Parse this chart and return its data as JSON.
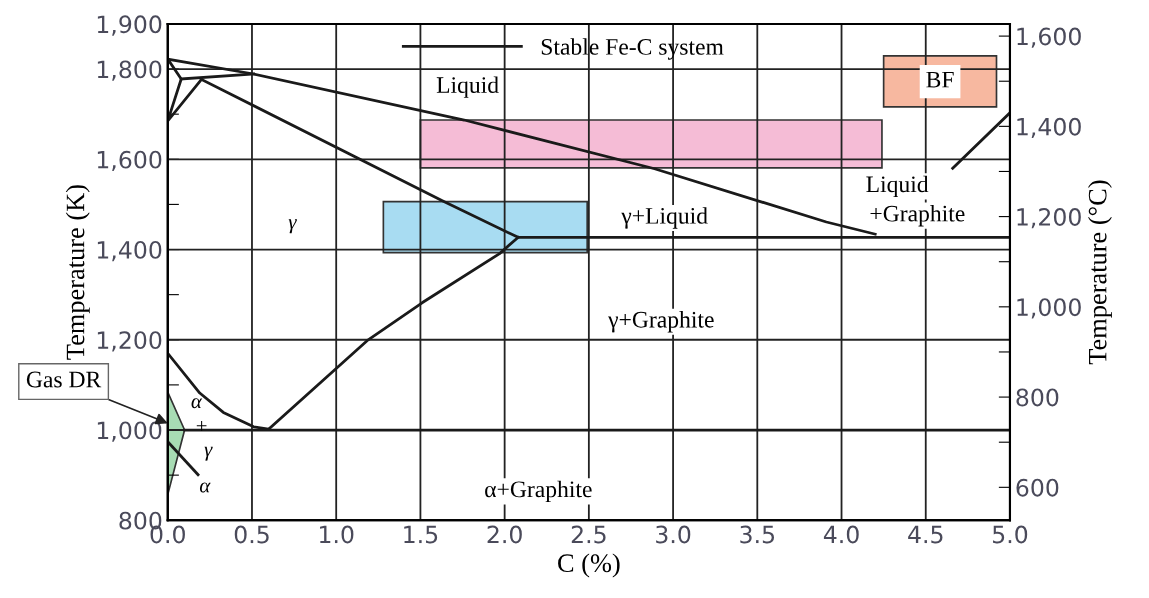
{
  "chart_data": {
    "type": "line",
    "xlabel": "C (%)",
    "ylabel": "Temperature (K)",
    "y2label": "Temperature (°C)",
    "xlim": [
      0,
      5
    ],
    "xticks": [
      {
        "value": 0,
        "label": "0.0"
      },
      {
        "value": 0.5,
        "label": "0.5"
      },
      {
        "value": 1,
        "label": "1.0"
      },
      {
        "value": 1.5,
        "label": "1.5"
      },
      {
        "value": 2,
        "label": "2.0"
      },
      {
        "value": 2.5,
        "label": "2.5"
      },
      {
        "value": 3,
        "label": "3.0"
      },
      {
        "value": 3.5,
        "label": "3.5"
      },
      {
        "value": 4,
        "label": "4.0"
      },
      {
        "value": 4.5,
        "label": "4.5"
      },
      {
        "value": 5,
        "label": "5.0"
      }
    ],
    "ylim": [
      800,
      1900
    ],
    "yticks": [
      800,
      {
        "value": 900,
        "label": null
      },
      {
        "value": 1000,
        "label": "1,000"
      },
      {
        "value": 1100,
        "label": null
      },
      {
        "value": 1200,
        "label": "1,200"
      },
      {
        "value": 1300,
        "label": null
      },
      {
        "value": 1400,
        "label": "1,400"
      },
      {
        "value": 1500,
        "label": null
      },
      {
        "value": 1600,
        "label": "1,600"
      },
      {
        "value": 1700,
        "label": null
      },
      {
        "value": 1800,
        "label": "1,800"
      },
      {
        "value": 1900,
        "label": "1,900"
      }
    ],
    "y2lim": [
      527,
      1627
    ],
    "y2ticks": [
      600,
      {
        "value": 700,
        "label": null
      },
      800,
      {
        "value": 900,
        "label": null
      },
      {
        "value": 1000,
        "label": "1,000"
      },
      {
        "value": 1100,
        "label": null
      },
      {
        "value": 1200,
        "label": "1,200"
      },
      {
        "value": 1300,
        "label": null
      },
      {
        "value": 1400,
        "label": "1,400"
      },
      {
        "value": 1500,
        "label": null
      },
      {
        "value": 1600,
        "label": "1,600"
      }
    ],
    "grid": true,
    "legend": "top",
    "marker": "none",
    "line_style": "solid",
    "series": [
      {
        "type": "area",
        "x": [
          1.5,
          1.5,
          4.24,
          4.24,
          1.5
        ],
        "values": [
          1581,
          1687,
          1687,
          1581,
          1581
        ],
        "color": "#f5bcd6"
      },
      {
        "type": "area",
        "x": [
          1.28,
          1.28,
          2.49,
          2.49,
          1.28
        ],
        "values": [
          1393,
          1506,
          1506,
          1393,
          1393
        ],
        "color": "#a8dcf2"
      },
      {
        "type": "area",
        "x": [
          4.25,
          4.25,
          4.92,
          4.92,
          4.25
        ],
        "values": [
          1716,
          1829,
          1829,
          1716,
          1716
        ],
        "color": "#f7b8a0"
      },
      {
        "type": "area",
        "x": [
          0,
          0.1,
          0,
          0
        ],
        "values": [
          1084,
          1000,
          857,
          1084
        ],
        "color": "#a8dcb4"
      },
      {
        "name": "Stable Fe-C system",
        "x": [
          0,
          0.51,
          1.76,
          2.89,
          3.91,
          4.2
        ],
        "values": [
          1822,
          1789,
          1687,
          1579,
          1461,
          1434
        ],
        "color": "#1a1a1a"
      },
      {
        "x": [
          0,
          0.08,
          0,
          0.2
        ],
        "values": [
          1822,
          1778,
          1685,
          1777
        ],
        "color": "#1a1a1a"
      },
      {
        "x": [
          0.08,
          0.51
        ],
        "values": [
          1778,
          1789
        ],
        "color": "#1a1a1a"
      },
      {
        "x": [
          0.2,
          1.63,
          2.08,
          5.0
        ],
        "values": [
          1777,
          1508,
          1427,
          1427
        ],
        "color": "#1a1a1a"
      },
      {
        "x": [
          4.66,
          5.0
        ],
        "values": [
          1580,
          1703
        ],
        "color": "#1a1a1a"
      },
      {
        "x": [
          0.6,
          1.19,
          1.51,
          1.97,
          2.08
        ],
        "values": [
          1002,
          1200,
          1282,
          1391,
          1427
        ],
        "color": "#1a1a1a"
      },
      {
        "x": [
          0,
          0.19,
          0.33,
          0.51,
          0.6
        ],
        "values": [
          1170,
          1082,
          1039,
          1007,
          1002
        ],
        "color": "#1a1a1a"
      },
      {
        "x": [
          0.1,
          5.0
        ],
        "values": [
          1000,
          1000
        ],
        "color": "#1a1a1a"
      },
      {
        "x": [
          0,
          0.18
        ],
        "values": [
          974,
          901
        ],
        "color": "#1a1a1a"
      }
    ],
    "annotations": [
      "Liquid",
      "γ",
      "γ+Liquid",
      "Liquid",
      "+Graphite",
      "γ+Graphite",
      "α+Graphite",
      "α",
      "+",
      "γ",
      "α",
      {
        "text": "BF",
        "x": 4.585,
        "y": 1772
      },
      {
        "text": "Gas DR",
        "x": 0,
        "y": 1015
      }
    ]
  }
}
